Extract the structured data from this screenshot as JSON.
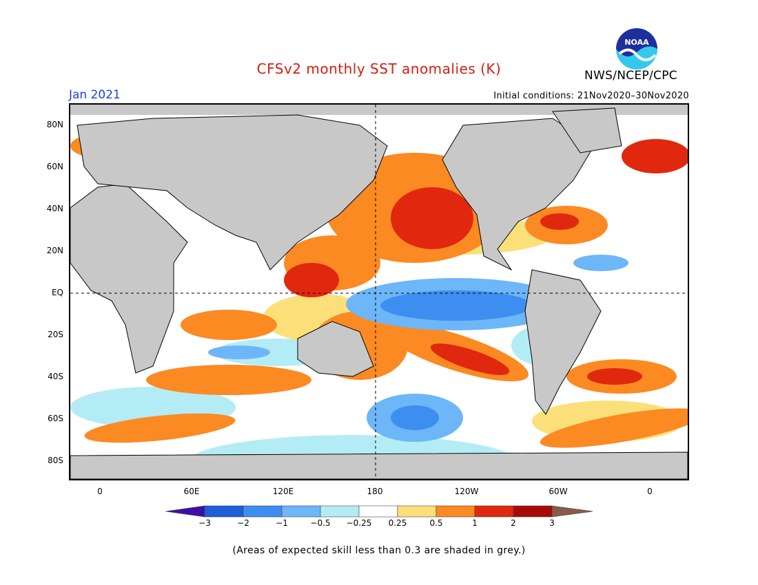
{
  "title": "CFSv2 monthly SST anomalies (K)",
  "period": "Jan 2021",
  "initial_conditions": "Initial conditions: 21Nov2020–30Nov2020",
  "agency": "NWS/NCEP/CPC",
  "logo_text": "NOAA",
  "lat_labels": [
    "80N",
    "60N",
    "40N",
    "20N",
    "EQ",
    "20S",
    "40S",
    "60S",
    "80S"
  ],
  "lon_labels": [
    "0",
    "60E",
    "120E",
    "180",
    "120W",
    "60W",
    "0"
  ],
  "colorbar": {
    "labels": [
      "−3",
      "−2",
      "−1",
      "−0.5",
      "−0.25",
      "0.25",
      "0.5",
      "1",
      "2",
      "3"
    ],
    "colors": [
      "#3a10a8",
      "#1c5fd6",
      "#3d8ef0",
      "#6db6f7",
      "#b4ecf5",
      "#ffffff",
      "#fbe07a",
      "#fb8a22",
      "#e0280e",
      "#a80a0a",
      "#8a5a48"
    ]
  },
  "footnote": "(Areas of expected skill less than 0.3 are shaded in grey.)"
}
